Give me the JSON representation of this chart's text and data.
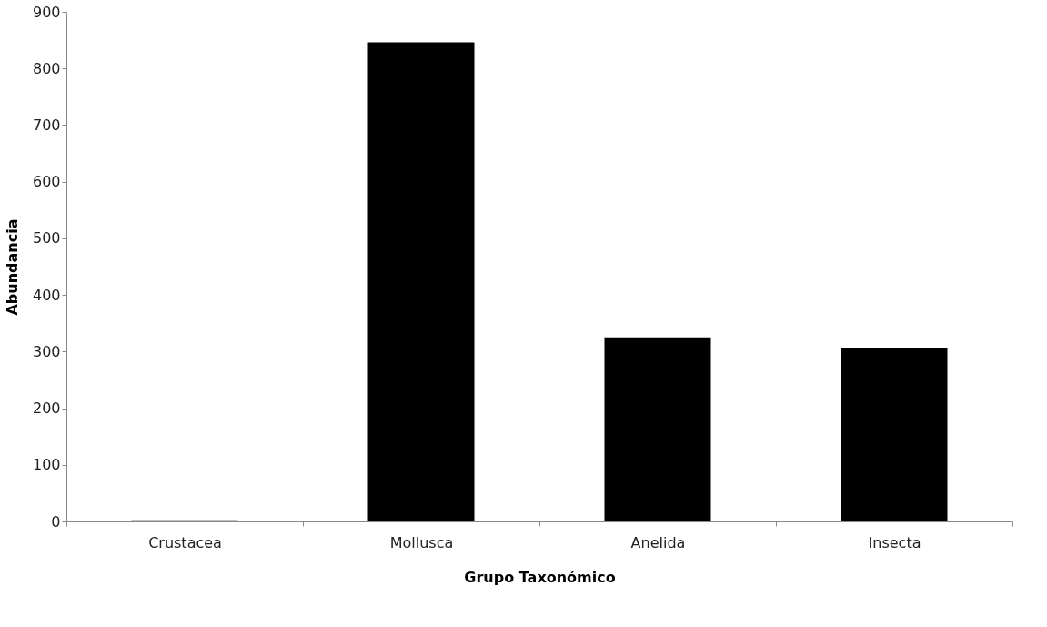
{
  "chart_data": {
    "type": "bar",
    "xlabel": "Grupo Taxonómico",
    "ylabel": "Abundancia",
    "categories": [
      "Crustacea",
      "Mollusca",
      "Anelida",
      "Insecta"
    ],
    "values": [
      2,
      846,
      325,
      307
    ],
    "color": "#000000",
    "ylim": [
      0,
      900
    ],
    "yticks": [
      0,
      100,
      200,
      300,
      400,
      500,
      600,
      700,
      800,
      900
    ],
    "grid": false
  }
}
